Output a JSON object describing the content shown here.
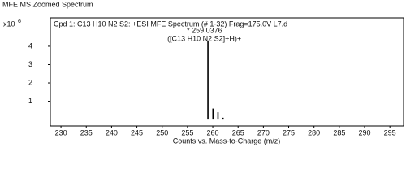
{
  "chart_data": {
    "type": "stem",
    "heading": "MFE MS Zoomed Spectrum",
    "title": "Cpd 1: C13 H10 N2 S2: +ESI MFE Spectrum (# 1-32) Frag=175.0V L7.d",
    "x_label": "Counts vs. Mass-to-Charge (m/z)",
    "y_multiplier": {
      "base": "x10",
      "exponent": "6"
    },
    "annotations": [
      "* 259.0376",
      "([C13 H10 N2 S2]+H)+"
    ],
    "x": [
      259.04,
      260.04,
      261.03,
      262.03
    ],
    "values": [
      4.3,
      0.6,
      0.4,
      0.1
    ],
    "color": "#000000",
    "xlim": [
      227.9,
      297.7
    ],
    "xticks": [
      230,
      235,
      240,
      245,
      250,
      255,
      260,
      265,
      270,
      275,
      280,
      285,
      290,
      295
    ],
    "ylim": [
      -0.35,
      5.55
    ],
    "yticks": [
      1,
      2,
      3,
      4
    ]
  }
}
